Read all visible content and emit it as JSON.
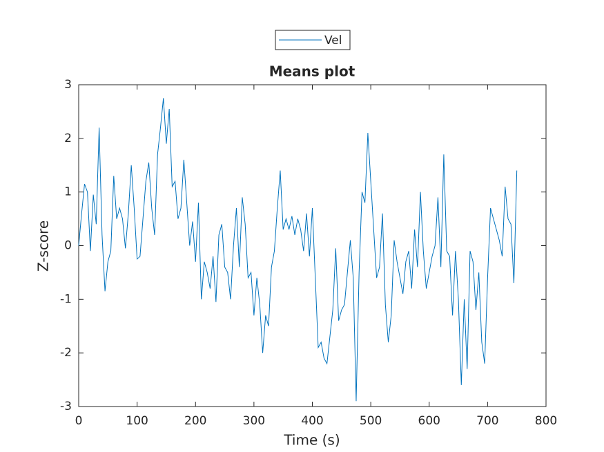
{
  "chart_data": {
    "type": "line",
    "title": "Means plot",
    "xlabel": "Time (s)",
    "ylabel": "Z-score",
    "x": [
      0,
      5,
      10,
      15,
      20,
      25,
      30,
      35,
      40,
      45,
      50,
      55,
      60,
      65,
      70,
      75,
      80,
      85,
      90,
      95,
      100,
      105,
      110,
      115,
      120,
      125,
      130,
      135,
      140,
      145,
      150,
      155,
      160,
      165,
      170,
      175,
      180,
      185,
      190,
      195,
      200,
      205,
      210,
      215,
      220,
      225,
      230,
      235,
      240,
      245,
      250,
      255,
      260,
      265,
      270,
      275,
      280,
      285,
      290,
      295,
      300,
      305,
      310,
      315,
      320,
      325,
      330,
      335,
      340,
      345,
      350,
      355,
      360,
      365,
      370,
      375,
      380,
      385,
      390,
      395,
      400,
      405,
      410,
      415,
      420,
      425,
      430,
      435,
      440,
      445,
      450,
      455,
      460,
      465,
      470,
      475,
      480,
      485,
      490,
      495,
      500,
      505,
      510,
      515,
      520,
      525,
      530,
      535,
      540,
      545,
      550,
      555,
      560,
      565,
      570,
      575,
      580,
      585,
      590,
      595,
      600,
      605,
      610,
      615,
      620,
      625,
      630,
      635,
      640,
      645,
      650,
      655,
      660,
      665,
      670,
      675,
      680,
      685,
      690,
      695,
      700,
      705,
      710,
      715,
      720,
      725,
      730,
      735,
      740,
      745,
      750
    ],
    "series": [
      {
        "name": "Vel",
        "color": "#0072bd",
        "values": [
          0.0,
          0.6,
          1.15,
          1.0,
          -0.1,
          0.95,
          0.4,
          2.2,
          0.2,
          -0.85,
          -0.3,
          -0.1,
          1.3,
          0.5,
          0.7,
          0.5,
          -0.05,
          0.6,
          1.5,
          0.7,
          -0.25,
          -0.2,
          0.5,
          1.2,
          1.55,
          0.7,
          0.2,
          1.7,
          2.2,
          2.75,
          1.9,
          2.55,
          1.1,
          1.2,
          0.5,
          0.7,
          1.6,
          0.8,
          0.0,
          0.45,
          -0.3,
          0.8,
          -1.0,
          -0.3,
          -0.5,
          -0.8,
          -0.2,
          -1.05,
          0.2,
          0.4,
          -0.4,
          -0.5,
          -1.0,
          0.0,
          0.7,
          -0.4,
          0.9,
          0.4,
          -0.6,
          -0.5,
          -1.3,
          -0.6,
          -1.1,
          -2.0,
          -1.3,
          -1.5,
          -0.4,
          -0.1,
          0.7,
          1.4,
          0.3,
          0.5,
          0.3,
          0.55,
          0.2,
          0.5,
          0.3,
          -0.1,
          0.6,
          -0.2,
          0.7,
          -0.6,
          -1.9,
          -1.8,
          -2.1,
          -2.2,
          -1.7,
          -1.2,
          -0.05,
          -1.4,
          -1.2,
          -1.1,
          -0.5,
          0.1,
          -0.6,
          -2.9,
          -0.5,
          1.0,
          0.8,
          2.1,
          1.2,
          0.3,
          -0.6,
          -0.4,
          0.6,
          -1.1,
          -1.8,
          -1.3,
          0.1,
          -0.3,
          -0.6,
          -0.9,
          -0.3,
          -0.1,
          -0.8,
          0.3,
          -0.4,
          1.0,
          -0.1,
          -0.8,
          -0.5,
          -0.2,
          0.0,
          0.9,
          -0.4,
          1.7,
          -0.1,
          -0.2,
          -1.3,
          -0.1,
          -1.0,
          -2.6,
          -1.0,
          -2.3,
          -0.1,
          -0.3,
          -1.2,
          -0.5,
          -1.8,
          -2.2,
          -0.6,
          0.7,
          0.5,
          0.3,
          0.1,
          -0.2,
          1.1,
          0.5,
          0.4,
          -0.7,
          1.4
        ]
      }
    ],
    "xlim": [
      0,
      800
    ],
    "xticks": [
      0,
      100,
      200,
      300,
      400,
      500,
      600,
      700,
      800
    ],
    "ylim": [
      -3,
      3
    ],
    "yticks": [
      -3,
      -2,
      -1,
      0,
      1,
      2,
      3
    ],
    "legend": "top"
  }
}
